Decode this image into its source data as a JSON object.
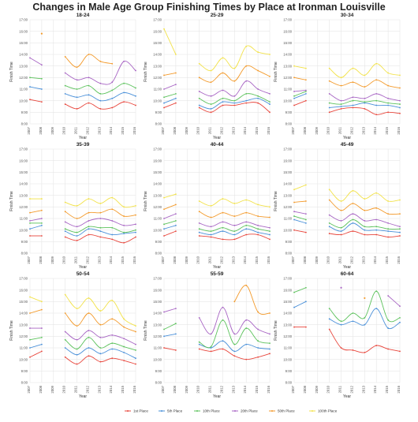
{
  "chart_data": {
    "type": "line",
    "title": "Changes in Male Age Group Finishing Times by Place at Ironman Louisville",
    "xlabel": "Year",
    "ylabel": "Finish Time",
    "x": [
      "2007",
      "2008",
      "2009",
      "2010",
      "2011",
      "2012",
      "2013",
      "2014",
      "2015",
      "2016"
    ],
    "x_values": [
      2007,
      2008,
      2009,
      2010,
      2011,
      2012,
      2013,
      2014,
      2015,
      2016
    ],
    "ylim": [
      8,
      17
    ],
    "yticks": [
      "8:00",
      "9:00",
      "10:00",
      "11:00",
      "12:00",
      "13:00",
      "14:00",
      "15:00",
      "16:00",
      "17:00"
    ],
    "grid": true,
    "legend_position": "bottom",
    "series_names": [
      "1st Place",
      "5th Place",
      "10th Place",
      "20th Place",
      "50th Place",
      "100th Place"
    ],
    "series_colors": [
      "#e8473d",
      "#4a90d9",
      "#5cc25c",
      "#a866c4",
      "#f39a2b",
      "#f2e24a"
    ],
    "panels": [
      {
        "title": "18-24",
        "series": [
          {
            "name": "1st Place",
            "values": [
              10.1,
              9.9,
              null,
              9.7,
              9.3,
              9.8,
              9.3,
              9.4,
              9.9,
              9.6
            ]
          },
          {
            "name": "5th Place",
            "values": [
              11.2,
              11.0,
              null,
              10.6,
              10.3,
              10.5,
              10.0,
              10.2,
              10.7,
              10.4
            ]
          },
          {
            "name": "10th Place",
            "values": [
              12.0,
              11.9,
              null,
              11.3,
              11.0,
              11.3,
              10.6,
              10.9,
              11.5,
              11.1
            ]
          },
          {
            "name": "20th Place",
            "values": [
              13.7,
              13.1,
              null,
              12.4,
              11.8,
              12.0,
              11.5,
              11.6,
              13.4,
              12.6
            ]
          },
          {
            "name": "50th Place",
            "values": [
              null,
              15.8,
              null,
              13.8,
              12.9,
              14.0,
              13.4,
              13.2,
              null,
              null
            ]
          },
          {
            "name": "100th Place",
            "values": [
              null,
              null,
              null,
              null,
              null,
              null,
              null,
              null,
              null,
              null
            ]
          }
        ]
      },
      {
        "title": "25-29",
        "series": [
          {
            "name": "1st Place",
            "values": [
              9.4,
              9.8,
              null,
              9.4,
              9.0,
              9.6,
              9.6,
              9.8,
              9.8,
              9.0
            ]
          },
          {
            "name": "5th Place",
            "values": [
              9.8,
              10.2,
              null,
              9.6,
              9.3,
              9.9,
              9.8,
              10.0,
              10.2,
              9.7
            ]
          },
          {
            "name": "10th Place",
            "values": [
              10.3,
              10.6,
              null,
              10.2,
              9.7,
              10.2,
              10.0,
              10.6,
              10.4,
              9.9
            ]
          },
          {
            "name": "20th Place",
            "values": [
              11.0,
              11.4,
              null,
              10.8,
              10.4,
              10.9,
              10.4,
              11.7,
              11.0,
              10.6
            ]
          },
          {
            "name": "50th Place",
            "values": [
              12.2,
              12.4,
              null,
              12.0,
              11.6,
              12.4,
              11.7,
              13.0,
              12.6,
              12.1
            ]
          },
          {
            "name": "100th Place",
            "values": [
              16.2,
              14.0,
              null,
              13.2,
              12.6,
              13.7,
              12.8,
              14.7,
              14.2,
              14.0
            ]
          }
        ]
      },
      {
        "title": "30-34",
        "series": [
          {
            "name": "1st Place",
            "values": [
              9.6,
              10.0,
              null,
              9.0,
              9.3,
              9.4,
              9.3,
              8.8,
              9.0,
              8.9
            ]
          },
          {
            "name": "5th Place",
            "values": [
              10.2,
              10.6,
              null,
              9.4,
              9.5,
              9.6,
              9.8,
              9.6,
              9.6,
              9.4
            ]
          },
          {
            "name": "10th Place",
            "values": [
              10.4,
              10.8,
              null,
              9.8,
              9.7,
              10.0,
              9.9,
              10.0,
              9.8,
              9.7
            ]
          },
          {
            "name": "20th Place",
            "values": [
              10.8,
              10.9,
              null,
              10.6,
              10.0,
              10.3,
              10.2,
              10.6,
              10.2,
              10.0
            ]
          },
          {
            "name": "50th Place",
            "values": [
              12.0,
              11.8,
              null,
              11.7,
              11.3,
              11.6,
              11.2,
              11.8,
              11.3,
              11.1
            ]
          },
          {
            "name": "100th Place",
            "values": [
              13.0,
              12.8,
              null,
              12.8,
              12.0,
              12.8,
              12.2,
              13.2,
              12.4,
              12.2
            ]
          }
        ]
      },
      {
        "title": "35-39",
        "series": [
          {
            "name": "1st Place",
            "values": [
              9.5,
              9.5,
              null,
              9.4,
              9.1,
              9.6,
              9.4,
              9.2,
              8.9,
              9.4
            ]
          },
          {
            "name": "5th Place",
            "values": [
              10.1,
              10.4,
              null,
              9.9,
              9.5,
              10.1,
              9.9,
              9.6,
              9.7,
              9.8
            ]
          },
          {
            "name": "10th Place",
            "values": [
              10.6,
              10.6,
              null,
              10.1,
              9.8,
              10.3,
              10.2,
              10.2,
              9.8,
              10.0
            ]
          },
          {
            "name": "20th Place",
            "values": [
              10.8,
              11.0,
              null,
              10.7,
              10.3,
              10.8,
              11.0,
              10.8,
              10.4,
              10.5
            ]
          },
          {
            "name": "50th Place",
            "values": [
              11.5,
              11.7,
              null,
              11.6,
              11.0,
              11.5,
              11.5,
              11.8,
              11.2,
              11.3
            ]
          },
          {
            "name": "100th Place",
            "values": [
              12.7,
              12.7,
              null,
              12.4,
              12.1,
              12.7,
              12.3,
              12.8,
              12.0,
              12.1
            ]
          }
        ]
      },
      {
        "title": "40-44",
        "series": [
          {
            "name": "1st Place",
            "values": [
              9.5,
              9.9,
              null,
              9.5,
              9.4,
              9.2,
              9.2,
              9.6,
              9.6,
              9.2
            ]
          },
          {
            "name": "5th Place",
            "values": [
              10.1,
              10.4,
              null,
              9.8,
              9.6,
              9.9,
              9.6,
              10.1,
              9.8,
              9.6
            ]
          },
          {
            "name": "10th Place",
            "values": [
              10.5,
              10.8,
              null,
              10.1,
              9.9,
              10.2,
              9.9,
              10.4,
              10.1,
              9.9
            ]
          },
          {
            "name": "20th Place",
            "values": [
              11.0,
              11.4,
              null,
              10.6,
              10.3,
              10.7,
              10.4,
              10.7,
              10.4,
              10.2
            ]
          },
          {
            "name": "50th Place",
            "values": [
              11.8,
              12.2,
              null,
              11.6,
              11.1,
              11.5,
              11.2,
              11.5,
              11.2,
              11.1
            ]
          },
          {
            "name": "100th Place",
            "values": [
              12.8,
              13.1,
              null,
              12.5,
              12.1,
              12.7,
              12.3,
              12.6,
              12.2,
              12.0
            ]
          }
        ]
      },
      {
        "title": "45-49",
        "series": [
          {
            "name": "1st Place",
            "values": [
              10.0,
              9.8,
              null,
              9.7,
              9.6,
              9.9,
              9.6,
              9.6,
              9.4,
              9.5
            ]
          },
          {
            "name": "5th Place",
            "values": [
              10.9,
              10.6,
              null,
              10.3,
              9.9,
              10.6,
              10.0,
              10.0,
              9.9,
              9.8
            ]
          },
          {
            "name": "10th Place",
            "values": [
              11.2,
              10.9,
              null,
              10.6,
              10.2,
              10.9,
              10.3,
              10.3,
              10.1,
              10.1
            ]
          },
          {
            "name": "20th Place",
            "values": [
              11.6,
              11.4,
              null,
              11.3,
              10.8,
              11.4,
              10.8,
              10.9,
              10.6,
              10.3
            ]
          },
          {
            "name": "50th Place",
            "values": [
              12.4,
              12.5,
              null,
              12.6,
              11.7,
              12.3,
              11.7,
              11.9,
              11.4,
              11.4
            ]
          },
          {
            "name": "100th Place",
            "values": [
              13.5,
              13.9,
              null,
              13.5,
              12.5,
              13.4,
              12.7,
              13.2,
              12.5,
              12.6
            ]
          }
        ]
      },
      {
        "title": "50-54",
        "series": [
          {
            "name": "1st Place",
            "values": [
              10.2,
              10.7,
              null,
              10.2,
              9.6,
              10.3,
              9.8,
              10.1,
              9.9,
              9.6
            ]
          },
          {
            "name": "5th Place",
            "values": [
              11.0,
              11.3,
              null,
              11.0,
              10.4,
              11.0,
              10.5,
              10.9,
              10.6,
              10.1
            ]
          },
          {
            "name": "10th Place",
            "values": [
              11.7,
              11.9,
              null,
              11.7,
              10.9,
              11.9,
              11.0,
              11.4,
              11.1,
              10.8
            ]
          },
          {
            "name": "20th Place",
            "values": [
              12.7,
              12.7,
              null,
              12.4,
              11.7,
              12.5,
              11.9,
              12.1,
              11.8,
              11.3
            ]
          },
          {
            "name": "50th Place",
            "values": [
              14.0,
              14.3,
              null,
              14.0,
              12.9,
              14.0,
              13.0,
              13.5,
              12.8,
              12.4
            ]
          },
          {
            "name": "100th Place",
            "values": [
              15.4,
              15.0,
              null,
              15.6,
              14.4,
              15.3,
              14.2,
              15.1,
              13.5,
              12.9
            ]
          }
        ]
      },
      {
        "title": "55-59",
        "series": [
          {
            "name": "1st Place",
            "values": [
              11.0,
              10.8,
              null,
              10.9,
              10.7,
              10.9,
              10.3,
              10.0,
              10.2,
              10.5
            ]
          },
          {
            "name": "5th Place",
            "values": [
              12.0,
              12.2,
              null,
              11.3,
              11.0,
              11.6,
              10.7,
              11.3,
              11.0,
              10.9
            ]
          },
          {
            "name": "10th Place",
            "values": [
              12.6,
              13.1,
              null,
              11.5,
              11.1,
              13.4,
              11.3,
              12.7,
              11.6,
              11.4
            ]
          },
          {
            "name": "20th Place",
            "values": [
              14.1,
              14.4,
              null,
              13.6,
              12.2,
              14.5,
              12.2,
              13.4,
              12.6,
              12.2
            ]
          },
          {
            "name": "50th Place",
            "values": [
              null,
              null,
              null,
              null,
              null,
              null,
              15.0,
              16.4,
              14.1,
              14.0
            ]
          },
          {
            "name": "100th Place",
            "values": [
              null,
              null,
              null,
              null,
              null,
              null,
              null,
              null,
              null,
              null
            ]
          }
        ]
      },
      {
        "title": "60-64",
        "series": [
          {
            "name": "1st Place",
            "values": [
              12.8,
              12.8,
              null,
              12.6,
              11.0,
              10.8,
              10.6,
              11.2,
              10.9,
              10.7
            ]
          },
          {
            "name": "5th Place",
            "values": [
              14.5,
              15.0,
              null,
              13.5,
              13.0,
              13.3,
              13.0,
              14.4,
              12.7,
              13.2
            ]
          },
          {
            "name": "10th Place",
            "values": [
              15.8,
              16.2,
              null,
              14.4,
              13.3,
              14.0,
              13.6,
              15.9,
              13.4,
              13.6
            ]
          },
          {
            "name": "20th Place",
            "values": [
              null,
              null,
              null,
              null,
              16.2,
              null,
              null,
              null,
              15.5,
              14.6
            ]
          },
          {
            "name": "50th Place",
            "values": [
              null,
              null,
              null,
              null,
              null,
              null,
              15.3,
              null,
              null,
              null
            ]
          },
          {
            "name": "100th Place",
            "values": [
              null,
              null,
              null,
              null,
              null,
              null,
              null,
              null,
              null,
              null
            ]
          }
        ]
      }
    ]
  }
}
